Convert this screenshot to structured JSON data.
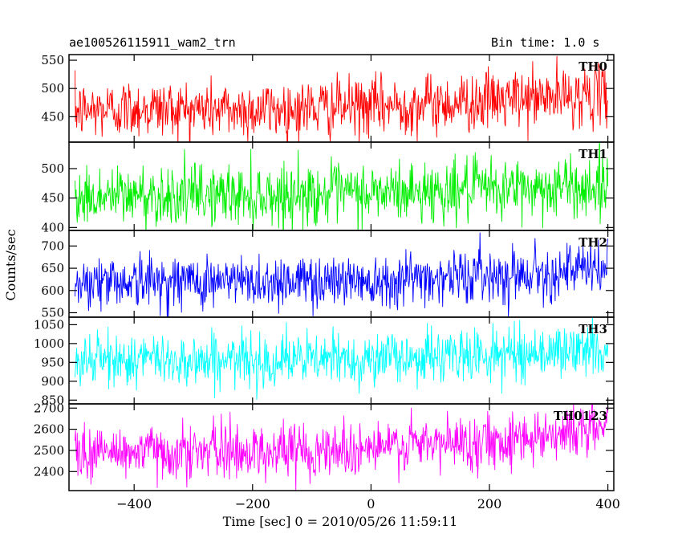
{
  "header": {
    "title": "ae100526115911_wam2_trn",
    "bin_time": "Bin time: 1.0 s"
  },
  "chart_data": {
    "type": "line",
    "title": "ae100526115911_wam2_trn",
    "subtitle": "Bin time: 1.0 s",
    "xlabel": "Time [sec] 0 = 2010/05/26 11:59:11",
    "ylabel": "Counts/sec",
    "xlim": [
      -510,
      410
    ],
    "x_ticks": [
      -400,
      -200,
      0,
      200,
      400
    ],
    "x_tick_labels": [
      "−400",
      "−200",
      "0",
      "200",
      "400"
    ],
    "x_range_data": [
      -500,
      400
    ],
    "grid": false,
    "panels": [
      {
        "name": "TH0",
        "color": "#ff0000",
        "ylim": [
          405,
          560
        ],
        "y_ticks": [
          450,
          500,
          550
        ],
        "y_tick_labels": [
          "450",
          "500",
          "550"
        ],
        "trend_points": [
          [
            -500,
            460
          ],
          [
            -400,
            465
          ],
          [
            -200,
            462
          ],
          [
            0,
            468
          ],
          [
            200,
            478
          ],
          [
            400,
            490
          ]
        ],
        "noise_sigma": 26
      },
      {
        "name": "TH1",
        "color": "#00ee00",
        "ylim": [
          395,
          545
        ],
        "y_ticks": [
          400,
          450,
          500
        ],
        "y_tick_labels": [
          "400",
          "450",
          "500"
        ],
        "trend_points": [
          [
            -500,
            450
          ],
          [
            -400,
            455
          ],
          [
            -200,
            455
          ],
          [
            0,
            458
          ],
          [
            200,
            465
          ],
          [
            400,
            470
          ]
        ],
        "noise_sigma": 26
      },
      {
        "name": "TH2",
        "color": "#0000ff",
        "ylim": [
          540,
          735
        ],
        "y_ticks": [
          550,
          600,
          650,
          700
        ],
        "y_tick_labels": [
          "550",
          "600",
          "650",
          "700"
        ],
        "trend_points": [
          [
            -500,
            620
          ],
          [
            -400,
            622
          ],
          [
            -200,
            620
          ],
          [
            0,
            625
          ],
          [
            200,
            635
          ],
          [
            400,
            648
          ]
        ],
        "noise_sigma": 30
      },
      {
        "name": "TH3",
        "color": "#00ffff",
        "ylim": [
          840,
          1070
        ],
        "y_ticks": [
          850,
          900,
          950,
          1000,
          1050
        ],
        "y_tick_labels": [
          "850",
          "900",
          "950",
          "1000",
          "1050"
        ],
        "trend_points": [
          [
            -500,
            955
          ],
          [
            -400,
            958
          ],
          [
            -200,
            955
          ],
          [
            0,
            960
          ],
          [
            200,
            970
          ],
          [
            400,
            985
          ]
        ],
        "noise_sigma": 35
      },
      {
        "name": "TH0123",
        "color": "#ff00ff",
        "ylim": [
          2310,
          2720
        ],
        "y_ticks": [
          2400,
          2500,
          2600,
          2700
        ],
        "y_tick_labels": [
          "2400",
          "2500",
          "2600",
          "2700"
        ],
        "trend_points": [
          [
            -500,
            2490
          ],
          [
            -400,
            2495
          ],
          [
            -200,
            2495
          ],
          [
            0,
            2510
          ],
          [
            200,
            2545
          ],
          [
            400,
            2610
          ]
        ],
        "noise_sigma": 65
      }
    ]
  }
}
